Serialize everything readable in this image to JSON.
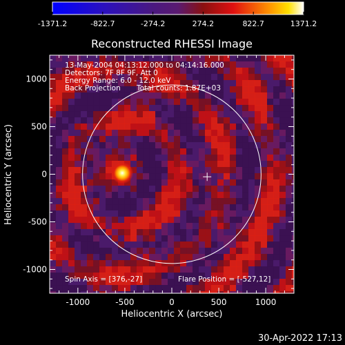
{
  "colorbar": {
    "ticks": [
      "-1371.2",
      "-822.7",
      "-274.2",
      "274.2",
      "822.7",
      "1371.2"
    ],
    "range": [
      -1371.2,
      1371.2
    ]
  },
  "chart_data": {
    "type": "heatmap",
    "title": "Reconstructed RHESSI Image",
    "xlabel": "Heliocentric X (arcsec)",
    "ylabel": "Heliocentric Y (arcsec)",
    "xlim": [
      -1300,
      1300
    ],
    "ylim": [
      -1250,
      1250
    ],
    "xticks": [
      "-1000",
      "-500",
      "0",
      "500",
      "1000"
    ],
    "yticks": [
      "1000",
      "500",
      "0",
      "-500",
      "-1000"
    ],
    "xtick_values": [
      -1000,
      -500,
      0,
      500,
      1000
    ],
    "ytick_values": [
      1000,
      500,
      0,
      -500,
      -1000
    ],
    "colormap": "blue-purple-red-yellow-white",
    "solar_limb_radius_arcsec": 950,
    "flare_source": {
      "x": -527,
      "y": 12,
      "peak": 1371.2
    },
    "spin_axis_marker": {
      "x": 376,
      "y": -27
    }
  },
  "annotations": {
    "time_range": "13-May-2004 04:13:12.000 to 04:14:16.000",
    "detectors": "Detectors: 7F 8F 9F, Att 0",
    "energy": "Energy Range: 6.0 - 12.0 keV",
    "method": "Back Projection",
    "counts": "Total counts: 1.87E+03",
    "spin_axis": "Spin Axis = [376,-27]",
    "flare_position": "Flare Position = [-527,12]"
  },
  "footer": {
    "timestamp": "30-Apr-2022 17:13"
  },
  "colors": {
    "background": "#000000",
    "foreground": "#ffffff",
    "cmap_low": "#0000ff",
    "cmap_mid_low": "#5a1a78",
    "cmap_mid_high": "#e01010",
    "cmap_high": "#ffffff"
  }
}
